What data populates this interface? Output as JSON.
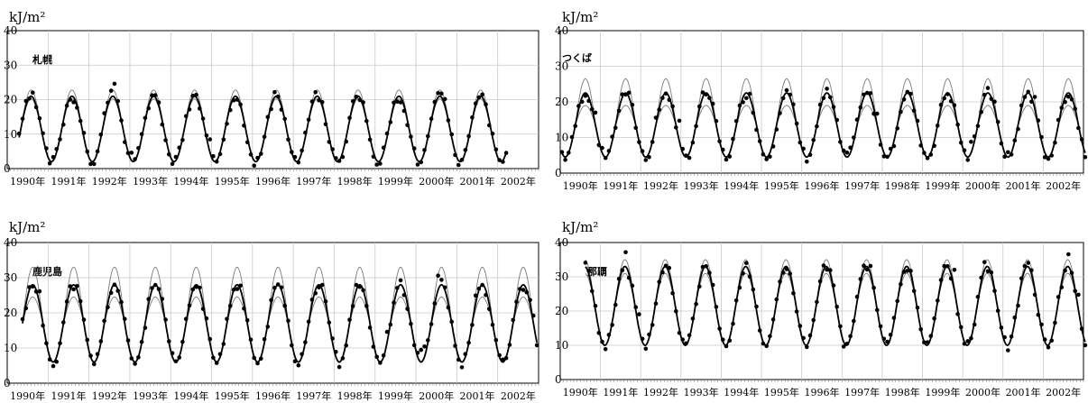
{
  "chart_data": [
    {
      "type": "line",
      "station": "札幌",
      "ylabel": "kJ/m²",
      "ylim": [
        0,
        40
      ],
      "yticks": [
        "0",
        "10",
        "20",
        "30",
        "40"
      ],
      "xticks": [
        "1990年",
        "1991年",
        "1992年",
        "1993年",
        "1994年",
        "1995年",
        "1996年",
        "1997年",
        "1998年",
        "1999年",
        "2000年",
        "2001年",
        "2002年"
      ],
      "params": {
        "mean": 11.5,
        "amp": 9.5,
        "peak": 6.5,
        "startMonth": 3,
        "months": 143,
        "outerRange": 1.8,
        "innerRange": -0.8,
        "obsSeed": 3
      }
    },
    {
      "type": "line",
      "station": "つくば",
      "ylabel": "kJ/m²",
      "ylim": [
        0,
        40
      ],
      "yticks": [
        "0",
        "10",
        "20",
        "30",
        "40"
      ],
      "xticks": [
        "1990年",
        "1991年",
        "1992年",
        "1993年",
        "1994年",
        "1995年",
        "1996年",
        "1997年",
        "1998年",
        "1999年",
        "2000年",
        "2001年",
        "2002年"
      ],
      "params": {
        "mean": 13.5,
        "amp": 9.0,
        "peak": 7.0,
        "startMonth": 0,
        "months": 156,
        "outerRange": 4.0,
        "innerRange": -3.5,
        "obsSeed": 7
      }
    },
    {
      "type": "line",
      "station": "鹿児島",
      "ylabel": "kJ/m²",
      "ylim": [
        0,
        40
      ],
      "yticks": [
        "0",
        "10",
        "20",
        "30",
        "40"
      ],
      "xticks": [
        "1990年",
        "1991年",
        "1992年",
        "1993年",
        "1994年",
        "1995年",
        "1996年",
        "1997年",
        "1998年",
        "1999年",
        "2000年",
        "2001年",
        "2002年"
      ],
      "params": {
        "mean": 17.0,
        "amp": 11.0,
        "peak": 7.0,
        "startMonth": 4,
        "months": 151,
        "outerRange": 5.0,
        "innerRange": -3.5,
        "obsSeed": 11
      }
    },
    {
      "type": "line",
      "station": "那覇",
      "ylabel": "kJ/m²",
      "ylim": [
        0,
        40
      ],
      "yticks": [
        "0",
        "10",
        "20",
        "30",
        "40"
      ],
      "xticks": [
        "1990年",
        "1991年",
        "1992年",
        "1993年",
        "1994年",
        "1995年",
        "1996年",
        "1997年",
        "1998年",
        "1999年",
        "2000年",
        "2001年",
        "2002年"
      ],
      "params": {
        "mean": 21.5,
        "amp": 11.5,
        "peak": 6.8,
        "startMonth": 7,
        "months": 149,
        "outerRange": 2.0,
        "innerRange": -2.0,
        "obsSeed": 5
      }
    }
  ]
}
